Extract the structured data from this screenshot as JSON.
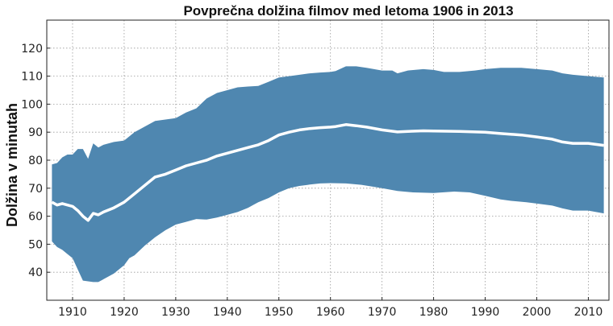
{
  "chart_data": {
    "type": "area",
    "title": "Povprečna dolžina filmov med letoma 1906 in 2013",
    "xlabel": "",
    "ylabel": "Dolžina v minutah",
    "xlim": [
      1905,
      2014
    ],
    "ylim": [
      30,
      130
    ],
    "xticks": [
      1910,
      1920,
      1930,
      1940,
      1950,
      1960,
      1970,
      1980,
      1990,
      2000,
      2010
    ],
    "yticks": [
      40,
      50,
      60,
      70,
      80,
      90,
      100,
      110,
      120
    ],
    "grid": true,
    "colors": {
      "band": "#4f87b0",
      "mean": "#ffffff"
    },
    "series": [
      {
        "name": "upper",
        "points": [
          [
            1906,
            78.5
          ],
          [
            1907,
            79
          ],
          [
            1908,
            81
          ],
          [
            1909,
            82
          ],
          [
            1910,
            82
          ],
          [
            1911,
            84
          ],
          [
            1912,
            84
          ],
          [
            1913,
            80.5
          ],
          [
            1914,
            86
          ],
          [
            1915,
            84.5
          ],
          [
            1916,
            85.5
          ],
          [
            1918,
            86.5
          ],
          [
            1920,
            87
          ],
          [
            1922,
            90
          ],
          [
            1924,
            92
          ],
          [
            1926,
            94
          ],
          [
            1928,
            94.5
          ],
          [
            1930,
            95
          ],
          [
            1932,
            97
          ],
          [
            1934,
            98.5
          ],
          [
            1936,
            102
          ],
          [
            1938,
            104
          ],
          [
            1940,
            105
          ],
          [
            1942,
            106
          ],
          [
            1944,
            106.3
          ],
          [
            1946,
            106.5
          ],
          [
            1948,
            108
          ],
          [
            1950,
            109.5
          ],
          [
            1952,
            110
          ],
          [
            1954,
            110.5
          ],
          [
            1956,
            111
          ],
          [
            1958,
            111.3
          ],
          [
            1960,
            111.5
          ],
          [
            1961,
            111.8
          ],
          [
            1963,
            113.5
          ],
          [
            1965,
            113.5
          ],
          [
            1967,
            113
          ],
          [
            1970,
            112
          ],
          [
            1972,
            112
          ],
          [
            1973,
            111
          ],
          [
            1975,
            112
          ],
          [
            1978,
            112.5
          ],
          [
            1980,
            112.2
          ],
          [
            1982,
            111.5
          ],
          [
            1985,
            111.5
          ],
          [
            1988,
            112
          ],
          [
            1990,
            112.5
          ],
          [
            1993,
            113
          ],
          [
            1997,
            113
          ],
          [
            2000,
            112.5
          ],
          [
            2003,
            112
          ],
          [
            2005,
            111
          ],
          [
            2007,
            110.5
          ],
          [
            2010,
            110
          ],
          [
            2013,
            109.5
          ]
        ]
      },
      {
        "name": "mean",
        "points": [
          [
            1906,
            65
          ],
          [
            1907,
            64
          ],
          [
            1908,
            64.5
          ],
          [
            1909,
            64
          ],
          [
            1910,
            63.5
          ],
          [
            1911,
            62
          ],
          [
            1912,
            60
          ],
          [
            1913,
            58.5
          ],
          [
            1914,
            61
          ],
          [
            1915,
            60.5
          ],
          [
            1916,
            61.5
          ],
          [
            1918,
            63
          ],
          [
            1920,
            65
          ],
          [
            1922,
            68
          ],
          [
            1924,
            71
          ],
          [
            1926,
            74
          ],
          [
            1928,
            75
          ],
          [
            1930,
            76.5
          ],
          [
            1932,
            78
          ],
          [
            1934,
            79
          ],
          [
            1936,
            80
          ],
          [
            1938,
            81.5
          ],
          [
            1940,
            82.5
          ],
          [
            1942,
            83.5
          ],
          [
            1944,
            84.5
          ],
          [
            1946,
            85.5
          ],
          [
            1948,
            87
          ],
          [
            1950,
            89
          ],
          [
            1952,
            90
          ],
          [
            1954,
            90.8
          ],
          [
            1956,
            91.3
          ],
          [
            1958,
            91.6
          ],
          [
            1960,
            91.8
          ],
          [
            1961,
            92
          ],
          [
            1963,
            92.7
          ],
          [
            1965,
            92.3
          ],
          [
            1967,
            91.8
          ],
          [
            1970,
            90.8
          ],
          [
            1973,
            90.1
          ],
          [
            1975,
            90.3
          ],
          [
            1978,
            90.5
          ],
          [
            1980,
            90.4
          ],
          [
            1985,
            90.3
          ],
          [
            1990,
            90
          ],
          [
            1993,
            89.5
          ],
          [
            1997,
            89
          ],
          [
            2000,
            88.3
          ],
          [
            2003,
            87.5
          ],
          [
            2005,
            86.5
          ],
          [
            2007,
            86
          ],
          [
            2010,
            86
          ],
          [
            2013,
            85.3
          ]
        ]
      },
      {
        "name": "lower",
        "points": [
          [
            1906,
            51
          ],
          [
            1907,
            49
          ],
          [
            1908,
            48
          ],
          [
            1909,
            46.5
          ],
          [
            1910,
            45
          ],
          [
            1911,
            41
          ],
          [
            1912,
            37
          ],
          [
            1914,
            36.5
          ],
          [
            1915,
            36.5
          ],
          [
            1916,
            37.5
          ],
          [
            1918,
            39.5
          ],
          [
            1920,
            42.5
          ],
          [
            1921,
            45
          ],
          [
            1922,
            46
          ],
          [
            1924,
            49.5
          ],
          [
            1926,
            52.5
          ],
          [
            1928,
            55
          ],
          [
            1930,
            57
          ],
          [
            1932,
            58
          ],
          [
            1934,
            59
          ],
          [
            1936,
            58.8
          ],
          [
            1938,
            59.5
          ],
          [
            1940,
            60.5
          ],
          [
            1942,
            61.5
          ],
          [
            1944,
            63
          ],
          [
            1946,
            65
          ],
          [
            1948,
            66.5
          ],
          [
            1950,
            68.5
          ],
          [
            1952,
            70
          ],
          [
            1954,
            70.8
          ],
          [
            1956,
            71.3
          ],
          [
            1958,
            71.7
          ],
          [
            1960,
            71.8
          ],
          [
            1963,
            71.7
          ],
          [
            1966,
            71.2
          ],
          [
            1970,
            70
          ],
          [
            1973,
            69
          ],
          [
            1976,
            68.5
          ],
          [
            1980,
            68.3
          ],
          [
            1984,
            68.8
          ],
          [
            1987,
            68.5
          ],
          [
            1990,
            67.3
          ],
          [
            1993,
            66
          ],
          [
            1995,
            65.5
          ],
          [
            1998,
            65
          ],
          [
            2000,
            64.5
          ],
          [
            2003,
            63.8
          ],
          [
            2005,
            62.8
          ],
          [
            2007,
            62
          ],
          [
            2010,
            62
          ],
          [
            2013,
            61
          ]
        ]
      }
    ]
  }
}
